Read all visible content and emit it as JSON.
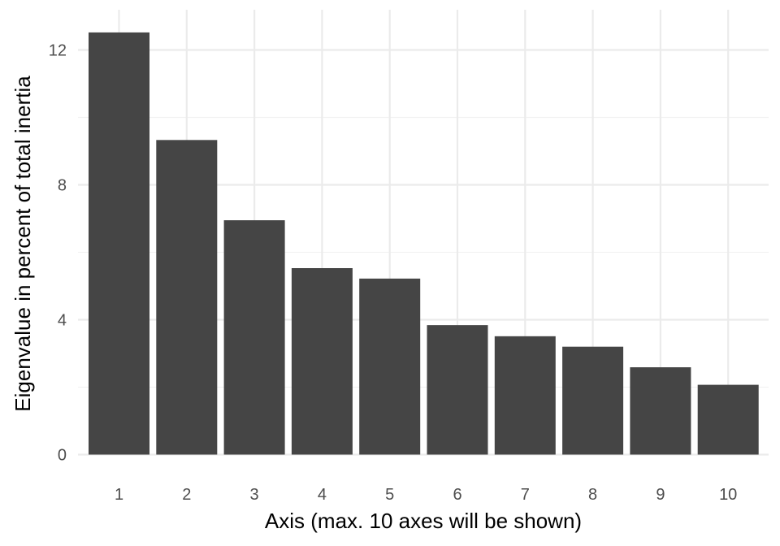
{
  "chart_data": {
    "type": "bar",
    "categories": [
      "1",
      "2",
      "3",
      "4",
      "5",
      "6",
      "7",
      "8",
      "9",
      "10"
    ],
    "values": [
      12.52,
      9.33,
      6.95,
      5.53,
      5.22,
      3.84,
      3.51,
      3.2,
      2.59,
      2.07
    ],
    "title": "",
    "xlabel": "Axis (max. 10 axes will be shown)",
    "ylabel": "Eigenvalue in percent of total inertia",
    "ylim": [
      0,
      13
    ],
    "yticks": [
      0,
      4,
      8,
      12
    ],
    "ytick_labels": [
      "0",
      "4",
      "8",
      "12"
    ],
    "grid": true,
    "legend": "none",
    "bar_color": "#454545"
  }
}
